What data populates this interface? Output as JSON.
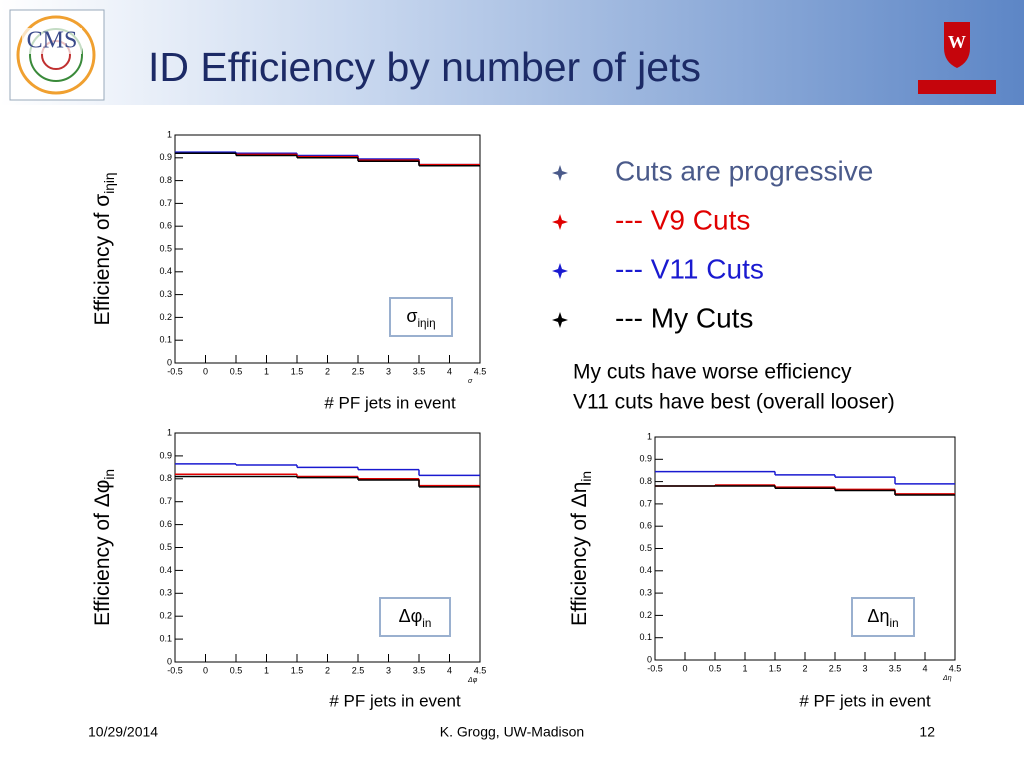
{
  "slide": {
    "title": "ID Efficiency by number of jets",
    "bullets": [
      {
        "text": "Cuts are progressive",
        "color": "#4a5a8a"
      },
      {
        "text": "--- V9 Cuts",
        "color": "#e00000"
      },
      {
        "text": "--- V11 Cuts",
        "color": "#1a1ad0"
      },
      {
        "text": "--- My Cuts",
        "color": "#000000"
      }
    ],
    "notes": [
      "My cuts have worse efficiency",
      "V11 cuts have best (overall looser)"
    ],
    "footer": {
      "date": "10/29/2014",
      "author": "K. Grogg, UW-Madison",
      "page": "12"
    }
  },
  "chart_data": [
    {
      "type": "histogram",
      "ylabel": {
        "text": "Efficiency of σ",
        "sub": "iηiη"
      },
      "xlabel": "# PF jets in event",
      "axis_name": "σ",
      "box_label": {
        "text": "σ",
        "sub": "iηiη"
      },
      "bins": [
        -0.5,
        0.5,
        1.5,
        2.5,
        3.5,
        4.5
      ],
      "series": [
        {
          "color": "#1a1ad0",
          "values": [
            0.925,
            0.92,
            0.91,
            0.895,
            0.87
          ]
        },
        {
          "color": "#e00000",
          "values": [
            0.92,
            0.915,
            0.905,
            0.89,
            0.87
          ]
        },
        {
          "color": "#000000",
          "values": [
            0.92,
            0.91,
            0.9,
            0.885,
            0.865
          ]
        }
      ],
      "xlim": [
        -0.5,
        4.5
      ],
      "xticks": [
        -0.5,
        0,
        0.5,
        1,
        1.5,
        2,
        2.5,
        3,
        3.5,
        4,
        4.5
      ],
      "ylim": [
        0,
        1
      ],
      "yticks": [
        0,
        0.1,
        0.2,
        0.3,
        0.4,
        0.5,
        0.6,
        0.7,
        0.8,
        0.9,
        1
      ]
    },
    {
      "type": "histogram",
      "ylabel": {
        "text": "Efficiency of Δφ",
        "sub": "in"
      },
      "xlabel": "# PF jets in event",
      "axis_name": "Δφ",
      "box_label": {
        "text": "Δφ",
        "sub": "in"
      },
      "bins": [
        -0.5,
        0.5,
        1.5,
        2.5,
        3.5,
        4.5
      ],
      "series": [
        {
          "color": "#1a1ad0",
          "values": [
            0.865,
            0.86,
            0.85,
            0.84,
            0.815
          ]
        },
        {
          "color": "#e00000",
          "values": [
            0.82,
            0.82,
            0.81,
            0.8,
            0.77
          ]
        },
        {
          "color": "#000000",
          "values": [
            0.81,
            0.81,
            0.805,
            0.795,
            0.765
          ]
        }
      ],
      "xlim": [
        -0.5,
        4.5
      ],
      "xticks": [
        -0.5,
        0,
        0.5,
        1,
        1.5,
        2,
        2.5,
        3,
        3.5,
        4,
        4.5
      ],
      "ylim": [
        0,
        1
      ],
      "yticks": [
        0,
        0.1,
        0.2,
        0.3,
        0.4,
        0.5,
        0.6,
        0.7,
        0.8,
        0.9,
        1
      ]
    },
    {
      "type": "histogram",
      "ylabel": {
        "text": "Efficiency of Δη",
        "sub": "in"
      },
      "xlabel": "# PF jets in event",
      "axis_name": "Δη",
      "box_label": {
        "text": "Δη",
        "sub": "in"
      },
      "bins": [
        -0.5,
        0.5,
        1.5,
        2.5,
        3.5,
        4.5
      ],
      "series": [
        {
          "color": "#1a1ad0",
          "values": [
            0.845,
            0.845,
            0.83,
            0.82,
            0.79
          ]
        },
        {
          "color": "#e00000",
          "values": [
            0.78,
            0.785,
            0.775,
            0.765,
            0.745
          ]
        },
        {
          "color": "#000000",
          "values": [
            0.78,
            0.78,
            0.77,
            0.76,
            0.74
          ]
        }
      ],
      "xlim": [
        -0.5,
        4.5
      ],
      "xticks": [
        -0.5,
        0,
        0.5,
        1,
        1.5,
        2,
        2.5,
        3,
        3.5,
        4,
        4.5
      ],
      "ylim": [
        0,
        1
      ],
      "yticks": [
        0,
        0.1,
        0.2,
        0.3,
        0.4,
        0.5,
        0.6,
        0.7,
        0.8,
        0.9,
        1
      ]
    }
  ]
}
